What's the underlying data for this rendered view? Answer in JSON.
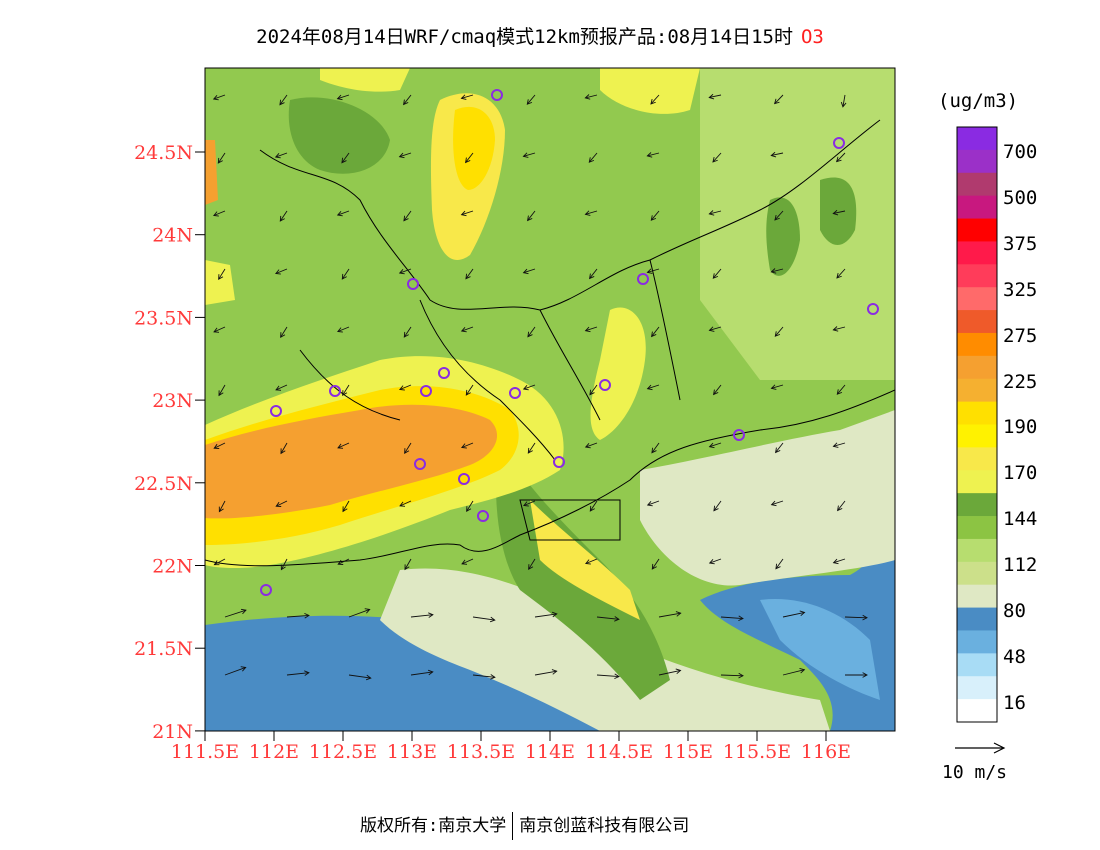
{
  "header": {
    "title": "2024年08月14日WRF/cmaq模式12km预报产品:08月14日15时",
    "pollutant": "O3"
  },
  "map": {
    "lat_labels": [
      "24.5N",
      "24N",
      "23.5N",
      "23N",
      "22.5N",
      "22N",
      "21.5N",
      "21N"
    ],
    "lon_labels": [
      "111.5E",
      "112E",
      "112.5E",
      "113E",
      "113.5E",
      "114E",
      "114.5E",
      "115E",
      "115.5E",
      "116E"
    ],
    "land_color": "#92c94f",
    "sea_color": "#4a8cc4",
    "coast_color": "#dfe8c4",
    "station_marker_color": "#8a2be2"
  },
  "legend": {
    "unit": "(ug/m3)",
    "labels": [
      "700",
      "500",
      "375",
      "325",
      "275",
      "225",
      "190",
      "170",
      "144",
      "112",
      "80",
      "48",
      "16"
    ],
    "colors": [
      "#8a2be2",
      "#9b30c8",
      "#b03a6e",
      "#c8187f",
      "#ff0000",
      "#ff1a4a",
      "#ff3c5a",
      "#ff6a6a",
      "#ef5a2a",
      "#ff8c00",
      "#f5a030",
      "#f5b030",
      "#ffe000",
      "#fff200",
      "#f8e84a",
      "#eef250",
      "#6ba83a",
      "#8cc443",
      "#b7dd6f",
      "#cce08a",
      "#dfe8c4",
      "#4a8cc4",
      "#6ab0df",
      "#a8dcf5",
      "#d8f0fb",
      "#ffffff"
    ]
  },
  "wind_reference": {
    "label": "10 m/s"
  },
  "footer": {
    "copyright": "版权所有:南京大学",
    "company": "南京创蓝科技有限公司"
  }
}
